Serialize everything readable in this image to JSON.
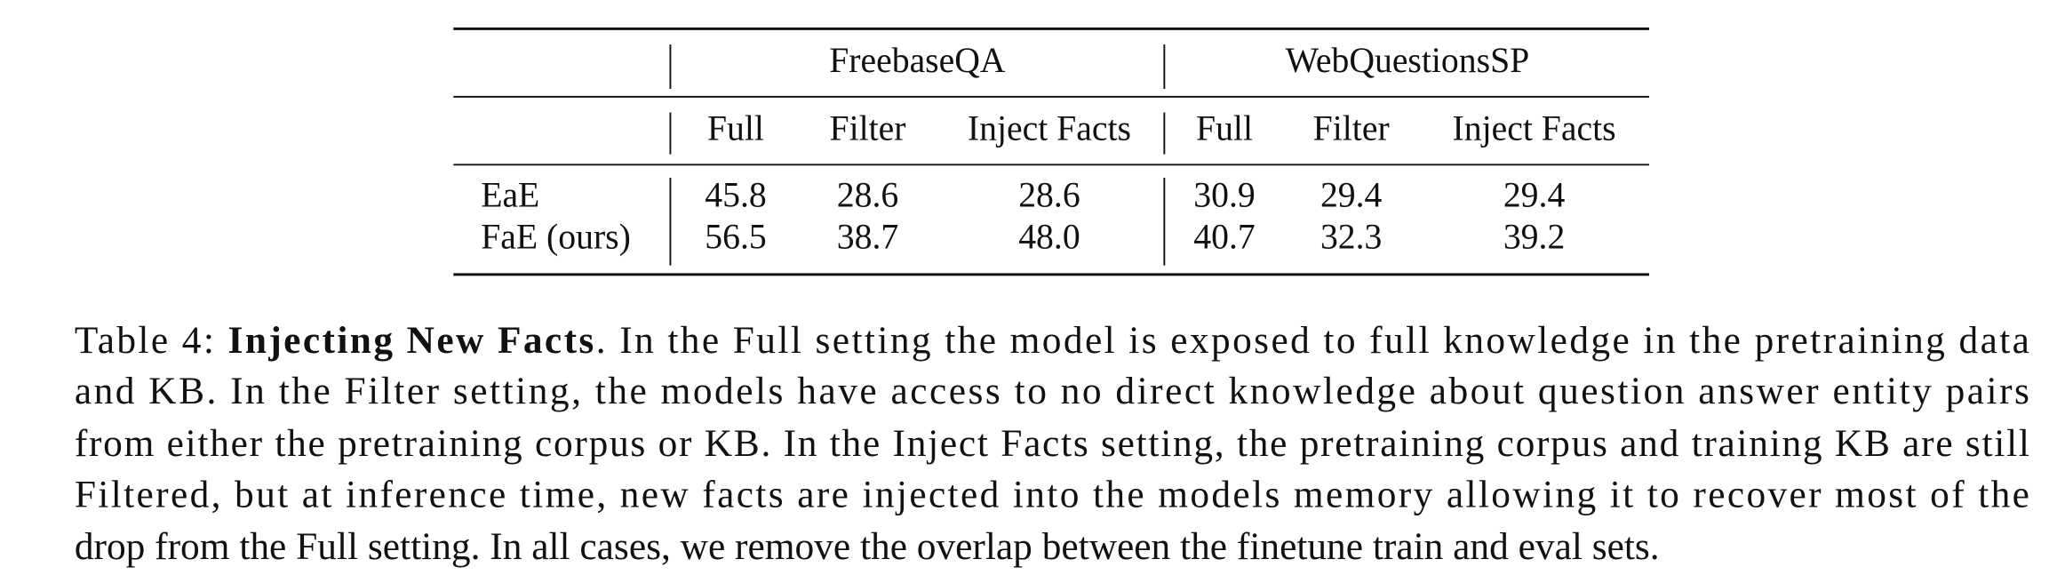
{
  "table": {
    "groups": [
      "FreebaseQA",
      "WebQuestionsSP"
    ],
    "columns": [
      "Full",
      "Filter",
      "Inject Facts",
      "Full",
      "Filter",
      "Inject Facts"
    ],
    "rows": [
      [
        "EaE",
        "45.8",
        "28.6",
        "28.6",
        "30.9",
        "29.4",
        "29.4"
      ],
      [
        "FaE (ours)",
        "56.5",
        "38.7",
        "48.0",
        "40.7",
        "32.3",
        "39.2"
      ]
    ]
  },
  "caption": {
    "label": "Table 4:",
    "title": "Injecting New Facts",
    "lines": [
      ". In the Full setting the model is exposed to full knowledge in the pretraining data",
      "and KB. In the Filter setting, the models have access to no direct knowledge about question answer entity pairs",
      "from either the pretraining corpus or KB. In the Inject Facts setting, the pretraining corpus and training KB are still",
      "Filtered, but at inference time, new facts are injected into the models memory allowing it to recover most of the",
      "drop from the Full setting. In all cases, we remove the overlap between the finetune train and eval sets."
    ]
  }
}
